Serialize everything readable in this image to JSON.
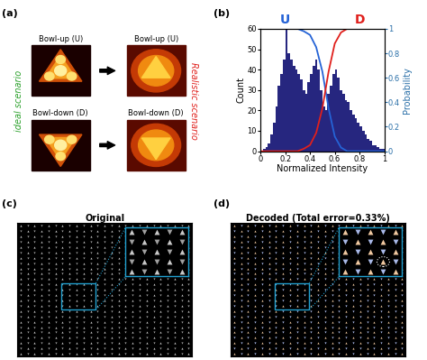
{
  "panel_a": {
    "label": "(a)",
    "left_label": "ideal scenario",
    "right_label": "Realistic scenario",
    "top_title": "Bowl-up (U)",
    "bottom_title": "Bowl-down (D)"
  },
  "chart_data": {
    "type": "histogram",
    "panel_label": "(b)",
    "x_label": "Normalized Intensity",
    "y_label": "Count",
    "y2_label": "Probability",
    "bins": [
      0,
      0.02,
      0.04,
      0.06,
      0.08,
      0.1,
      0.12,
      0.14,
      0.16,
      0.18,
      0.2,
      0.22,
      0.24,
      0.26,
      0.28,
      0.3,
      0.32,
      0.34,
      0.36,
      0.38,
      0.4,
      0.42,
      0.44,
      0.46,
      0.48,
      0.5,
      0.52,
      0.54,
      0.56,
      0.58,
      0.6,
      0.62,
      0.64,
      0.66,
      0.68,
      0.7,
      0.72,
      0.74,
      0.76,
      0.78,
      0.8,
      0.82,
      0.84,
      0.86,
      0.88,
      0.9,
      0.92,
      0.94,
      0.96,
      0.98,
      1.0
    ],
    "counts": [
      0,
      1,
      2,
      4,
      8,
      14,
      22,
      32,
      38,
      45,
      60,
      48,
      45,
      42,
      40,
      38,
      35,
      30,
      28,
      34,
      38,
      42,
      45,
      40,
      30,
      22,
      20,
      28,
      32,
      38,
      40,
      36,
      30,
      28,
      25,
      24,
      20,
      18,
      16,
      14,
      12,
      10,
      8,
      6,
      5,
      3,
      3,
      2,
      1,
      1
    ],
    "color": "#26267f",
    "x": [
      0,
      0.05,
      0.1,
      0.15,
      0.2,
      0.25,
      0.3,
      0.35,
      0.4,
      0.45,
      0.5,
      0.55,
      0.6,
      0.65,
      0.7,
      0.75,
      0.8,
      0.85,
      0.9,
      0.95,
      1.0
    ],
    "series": [
      {
        "name": "U",
        "color": "#2563d6",
        "type": "line",
        "axis": "y2",
        "values": [
          1,
          1,
          1,
          1,
          1,
          1,
          1,
          0.98,
          0.95,
          0.85,
          0.65,
          0.35,
          0.12,
          0.03,
          0,
          0,
          0,
          0,
          0,
          0,
          0
        ]
      },
      {
        "name": "D",
        "color": "#e0201c",
        "type": "line",
        "axis": "y2",
        "values": [
          0,
          0,
          0,
          0,
          0,
          0,
          0,
          0.02,
          0.05,
          0.15,
          0.35,
          0.65,
          0.88,
          0.97,
          1,
          1,
          1,
          1,
          1,
          1,
          1
        ]
      }
    ],
    "xlim": [
      0,
      1
    ],
    "xticks": [
      0,
      0.2,
      0.4,
      0.6,
      0.8,
      1
    ],
    "ylim": [
      0,
      60
    ],
    "yticks": [
      0,
      10,
      20,
      30,
      40,
      50,
      60
    ],
    "y2lim": [
      0,
      1
    ],
    "y2ticks": [
      0,
      0.2,
      0.4,
      0.6,
      0.8,
      1
    ]
  },
  "panel_c": {
    "label": "(c)",
    "title": "Original"
  },
  "panel_d": {
    "label": "(d)",
    "title": "Decoded (Total error=0.33%)"
  }
}
